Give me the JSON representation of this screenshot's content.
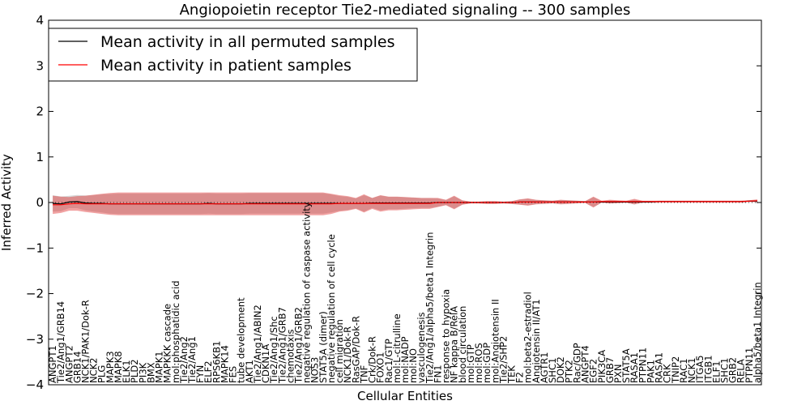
{
  "chart_data": {
    "type": "line",
    "title": "Angiopoietin receptor Tie2-mediated signaling -- 300 samples",
    "xlabel": "Cellular Entities",
    "ylabel": "Inferred Activity",
    "ylim": [
      -4,
      4
    ],
    "yticks": [
      -4,
      -3,
      -2,
      -1,
      0,
      1,
      2,
      3,
      4
    ],
    "ytick_labels": [
      "−4",
      "−3",
      "−2",
      "−1",
      "0",
      "1",
      "2",
      "3",
      "4"
    ],
    "legend_position": "top-left",
    "legend": [
      {
        "label": "Mean activity in all permuted samples",
        "color": "#000000"
      },
      {
        "label": "Mean activity in patient samples",
        "color": "#ff0000"
      }
    ],
    "categories": [
      "ANGPT1",
      "Tie2/Ang1/GRB14",
      "ANGPT2",
      "GRB14",
      "NCK1/PAK1/Dok-R",
      "NCK2",
      "PLG",
      "MAPK3",
      "MAPK8",
      "ELK1",
      "PLD2",
      "PI3K",
      "BMX",
      "MAPK1",
      "MAPKKK cascade",
      "mol:phosphatidic acid",
      "Tie2/Ang2",
      "Tie2/Ang1",
      "FYN",
      "ELF2",
      "RPS6KB1",
      "MAPK14",
      "FES",
      "tube development",
      "AKT1",
      "Tie2/Ang1/ABIN2",
      "CDKN1A",
      "Tie2/Ang1/Shc",
      "Tie2/Ang1/GRB7",
      "chemotaxis",
      "Tie2/Ang1/GRB2",
      "negative regulation of caspase activity",
      "NOS3",
      "STAT5A (dimer)",
      "negative regulation of cell cycle",
      "cell migration",
      "NCK1/Dok-R",
      "RasGAP/Dok-R",
      "TNF",
      "Crk/Dok-R",
      "FOXO1",
      "Rac1/GTP",
      "mol:L-citrulline",
      "mol:NADP",
      "mol:NO",
      "vasculogenesis",
      "Tie2/Ang1/alpha5/beta1 Integrin",
      "FN1",
      "response to hypoxia",
      "NF kappa B/RelA",
      "blood circulation",
      "mol:GTP",
      "mol:ROS",
      "mol:GDP",
      "mol:Angiotensin II",
      "Tie2/SHP2",
      "TEK",
      "F2",
      "mol:beta2-estradiol",
      "Angiotensin II/AT1",
      "AGTR1",
      "SHC1",
      "DOK2",
      "PTK2",
      "Rac/GDP",
      "ANGPT4",
      "EGF2",
      "PIK3CA",
      "GRB7",
      "PXN",
      "STAT5A",
      "RASA1",
      "PTPN11",
      "PAK1",
      "RASA1",
      "CRK",
      "TNIP2",
      "RAC1",
      "NCK1",
      "ITGA5",
      "ITGB1",
      "ELF1",
      "SHC1",
      "GRB2",
      "RELA",
      "PTPN11",
      "alpha5/beta1 Integrin"
    ],
    "series": [
      {
        "name": "Mean activity in all permuted samples",
        "color": "#000000",
        "values": [
          -0.02,
          -0.03,
          0.01,
          0.02,
          -0.01,
          -0.02,
          -0.02,
          -0.03,
          -0.03,
          -0.03,
          -0.03,
          -0.03,
          -0.03,
          -0.03,
          -0.03,
          -0.03,
          -0.03,
          -0.03,
          -0.03,
          -0.02,
          -0.03,
          -0.03,
          -0.03,
          -0.03,
          -0.02,
          -0.02,
          -0.02,
          -0.02,
          -0.02,
          -0.02,
          -0.02,
          -0.02,
          -0.02,
          -0.02,
          -0.02,
          -0.02,
          -0.02,
          -0.02,
          -0.02,
          -0.01,
          -0.01,
          -0.01,
          -0.01,
          -0.01,
          -0.01,
          -0.01,
          -0.01,
          0.0,
          0.0,
          0.0,
          0.0,
          0.0,
          0.0,
          0.0,
          0.0,
          0.0,
          0.0,
          0.01,
          0.01,
          0.01,
          0.01,
          0.01,
          0.01,
          0.01,
          0.01,
          0.01,
          0.01,
          0.01,
          0.01,
          0.01,
          0.01,
          0.01,
          0.01,
          0.01,
          0.02,
          0.02,
          0.02,
          0.02,
          0.02,
          0.02,
          0.02,
          0.02,
          0.02,
          0.02,
          0.02,
          0.03,
          0.03
        ]
      },
      {
        "name": "Mean activity in patient samples",
        "color": "#ff0000",
        "values": [
          -0.05,
          -0.05,
          -0.03,
          -0.02,
          -0.03,
          -0.03,
          -0.03,
          -0.03,
          -0.03,
          -0.03,
          -0.03,
          -0.03,
          -0.03,
          -0.03,
          -0.03,
          -0.03,
          -0.03,
          -0.03,
          -0.03,
          -0.03,
          -0.03,
          -0.03,
          -0.03,
          -0.03,
          -0.03,
          -0.03,
          -0.03,
          -0.03,
          -0.03,
          -0.03,
          -0.03,
          -0.03,
          -0.03,
          -0.03,
          -0.03,
          -0.02,
          -0.02,
          -0.02,
          -0.02,
          -0.02,
          -0.02,
          -0.02,
          -0.02,
          -0.02,
          -0.02,
          -0.02,
          -0.02,
          0.0,
          0.0,
          0.0,
          0.0,
          0.0,
          0.0,
          0.0,
          0.0,
          0.0,
          0.0,
          0.01,
          0.01,
          0.01,
          0.01,
          0.01,
          0.01,
          0.01,
          0.01,
          0.01,
          0.01,
          0.02,
          0.02,
          0.02,
          0.02,
          0.02,
          0.02,
          0.02,
          0.02,
          0.02,
          0.02,
          0.02,
          0.02,
          0.02,
          0.02,
          0.02,
          0.02,
          0.02,
          0.02,
          0.03,
          0.04
        ]
      }
    ],
    "band_halfwidth": [
      0.2,
      0.18,
      0.15,
      0.16,
      0.18,
      0.2,
      0.22,
      0.24,
      0.25,
      0.25,
      0.25,
      0.25,
      0.25,
      0.25,
      0.25,
      0.25,
      0.25,
      0.25,
      0.25,
      0.25,
      0.25,
      0.25,
      0.25,
      0.25,
      0.25,
      0.25,
      0.25,
      0.25,
      0.25,
      0.25,
      0.25,
      0.25,
      0.25,
      0.25,
      0.22,
      0.18,
      0.16,
      0.12,
      0.2,
      0.12,
      0.18,
      0.15,
      0.15,
      0.14,
      0.13,
      0.12,
      0.12,
      0.1,
      0.06,
      0.15,
      0.05,
      0.02,
      0.02,
      0.03,
      0.03,
      0.02,
      0.03,
      0.06,
      0.08,
      0.05,
      0.04,
      0.03,
      0.05,
      0.04,
      0.03,
      0.02,
      0.12,
      0.02,
      0.04,
      0.03,
      0.02,
      0.06,
      0.02,
      0.02,
      0.02,
      0.02,
      0.02,
      0.02,
      0.02,
      0.02,
      0.02,
      0.02,
      0.02,
      0.02,
      0.02,
      0.02,
      0.03
    ]
  }
}
